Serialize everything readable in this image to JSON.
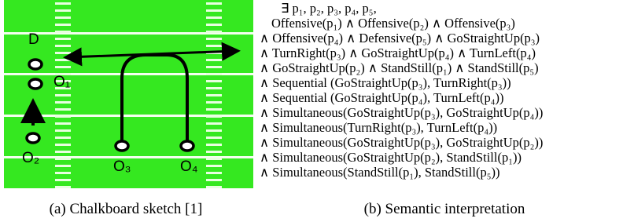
{
  "panel_a": {
    "labels": [
      "D",
      "O₁",
      "O₂",
      "O₃",
      "O₄"
    ],
    "caption": "(a) Chalkboard sketch [1]"
  },
  "panel_b": {
    "lines": [
      "∃ p₁, p₂, p₃, p₄, p₅,",
      "Offensive(p₁) ∧ Offensive(p₂) ∧ Offensive(p₃)",
      "∧ Offensive(p₄) ∧ Defensive(p₅) ∧ GoStraightUp(p₃)",
      "∧ TurnRight(p₃) ∧ GoStraightUp(p₄) ∧ TurnLeft(p₄)",
      "∧ GoStraightUp(p₂) ∧ StandStill(p₁) ∧ StandStill(p₅)",
      "∧ Sequential (GoStraightUp(p₃), TurnRight(p₃))",
      "∧ Sequential (GoStraightUp(p₄), TurnLeft(p₄))",
      "∧ Simultaneous(GoStraightUp(p₃), GoStraightUp(p₄))",
      "∧ Simultaneous(TurnRight(p₃), TurnLeft(p₄))",
      "∧ Simultaneous(GoStraightUp(p₃), GoStraightUp(p₂))",
      "∧ Simultaneous(GoStraightUp(p₂), StandStill(p₁))",
      "∧ Simultaneous(StandStill(p₁), StandStill(p₅))"
    ],
    "caption": "(b) Semantic interpretation"
  }
}
